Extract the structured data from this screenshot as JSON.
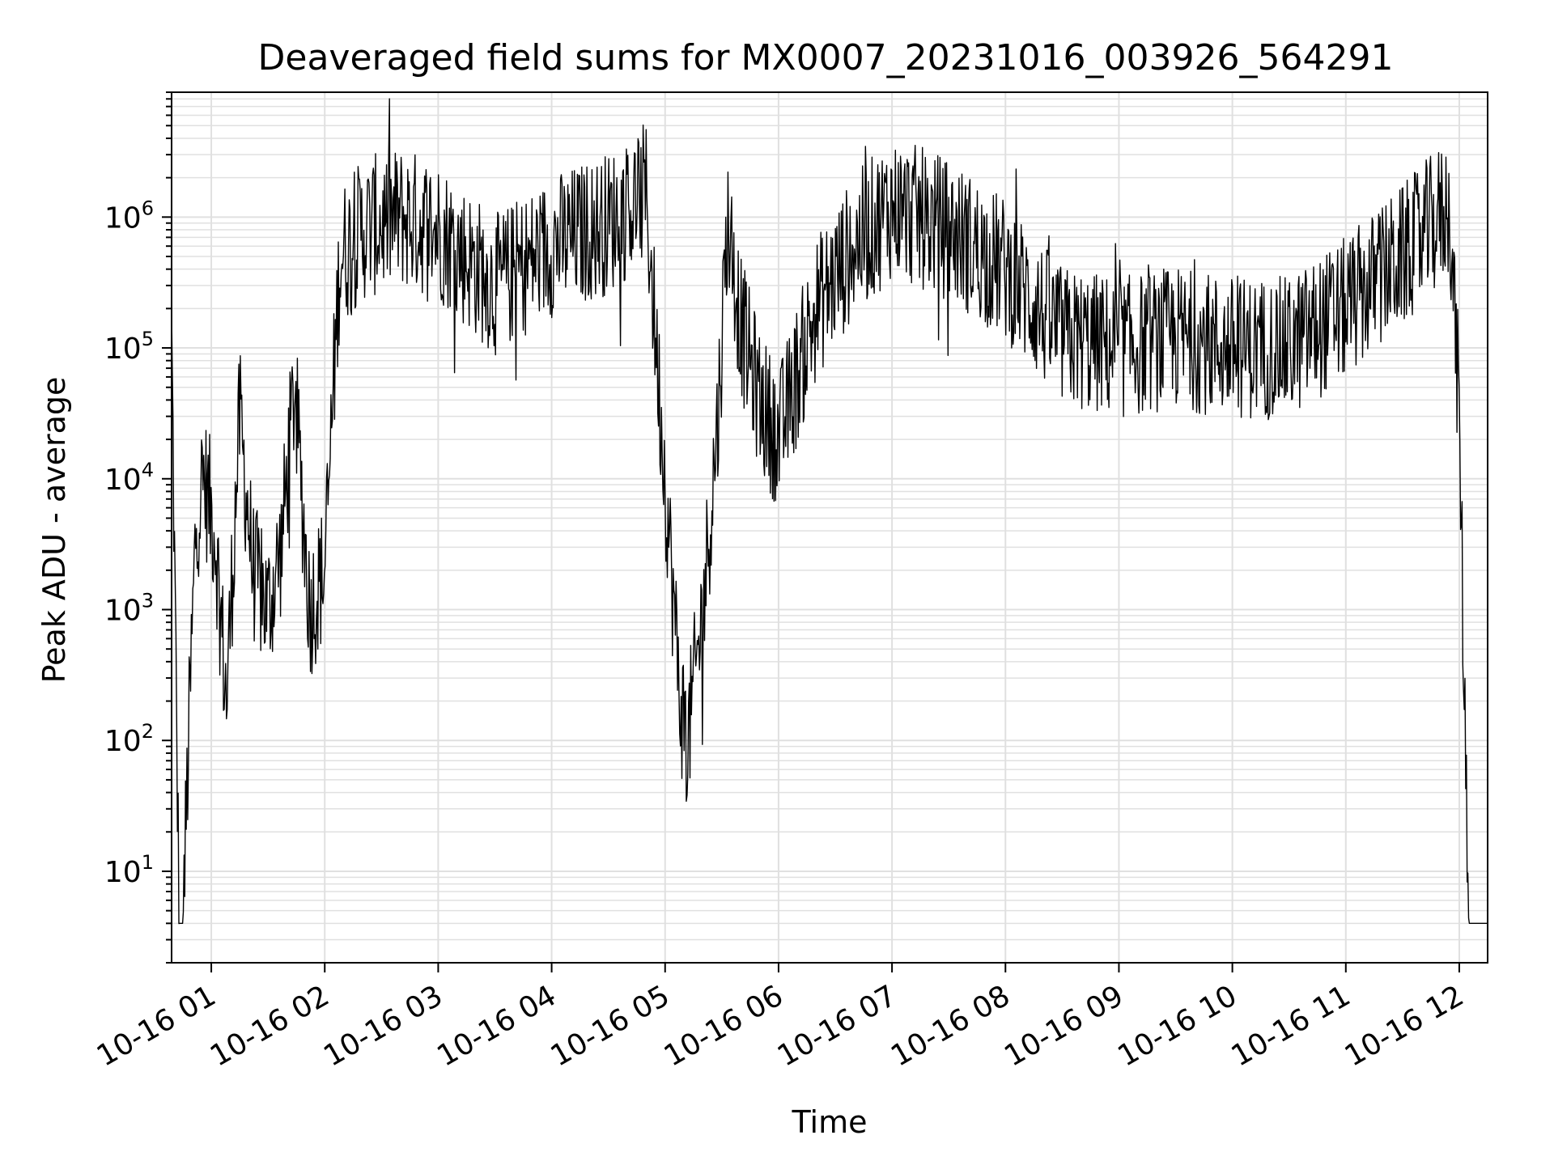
{
  "chart_data": {
    "type": "line",
    "title": "Deaveraged field sums for MX0007_20231016_003926_564291",
    "xlabel": "Time",
    "ylabel": "Peak ADU - average",
    "yscale": "log",
    "ylim": [
      2,
      9000000
    ],
    "xlim": [
      "2023-10-16 00:39",
      "2023-10-16 12:15"
    ],
    "grid": true,
    "line_color": "#000000",
    "grid_color": "#e0e0e0",
    "x_ticks": [
      "10-16 01",
      "10-16 02",
      "10-16 03",
      "10-16 04",
      "10-16 05",
      "10-16 06",
      "10-16 07",
      "10-16 08",
      "10-16 09",
      "10-16 10",
      "10-16 11",
      "10-16 12"
    ],
    "y_ticks": [
      {
        "base": "10",
        "exp": "1",
        "value": 10
      },
      {
        "base": "10",
        "exp": "2",
        "value": 100
      },
      {
        "base": "10",
        "exp": "3",
        "value": 1000
      },
      {
        "base": "10",
        "exp": "4",
        "value": 10000
      },
      {
        "base": "10",
        "exp": "5",
        "value": 100000
      },
      {
        "base": "10",
        "exp": "6",
        "value": 1000000
      }
    ],
    "series": [
      {
        "x": [
          "2023-10-16 00:39",
          "2023-10-16 00:43",
          "2023-10-16 00:45",
          "2023-10-16 00:48",
          "2023-10-16 00:52",
          "2023-10-16 00:56",
          "2023-10-16 01:02",
          "2023-10-16 01:08",
          "2023-10-16 01:15",
          "2023-10-16 01:22",
          "2023-10-16 01:30",
          "2023-10-16 01:37",
          "2023-10-16 01:44",
          "2023-10-16 01:52",
          "2023-10-16 02:00",
          "2023-10-16 02:08",
          "2023-10-16 02:20",
          "2023-10-16 02:40",
          "2023-10-16 03:00",
          "2023-10-16 03:30",
          "2023-10-16 04:00",
          "2023-10-16 04:30",
          "2023-10-16 04:50",
          "2023-10-16 05:00",
          "2023-10-16 05:08",
          "2023-10-16 05:12",
          "2023-10-16 05:20",
          "2023-10-16 05:28",
          "2023-10-16 05:33",
          "2023-10-16 05:40",
          "2023-10-16 05:50",
          "2023-10-16 06:00",
          "2023-10-16 06:20",
          "2023-10-16 06:40",
          "2023-10-16 07:00",
          "2023-10-16 07:30",
          "2023-10-16 08:00",
          "2023-10-16 08:30",
          "2023-10-16 09:00",
          "2023-10-16 09:30",
          "2023-10-16 10:00",
          "2023-10-16 10:30",
          "2023-10-16 11:00",
          "2023-10-16 11:30",
          "2023-10-16 11:55",
          "2023-10-16 12:00",
          "2023-10-16 12:05",
          "2023-10-16 12:10",
          "2023-10-16 12:15"
        ],
        "y": [
          130000,
          4,
          4,
          100,
          5000,
          10000,
          4000,
          200,
          30000,
          2000,
          1000,
          3000,
          50000,
          1000,
          2000,
          500000,
          800000,
          1000000,
          800000,
          300000,
          600000,
          900000,
          1500000,
          10000,
          200,
          100,
          1000,
          30000,
          1000000,
          150000,
          40000,
          20000,
          200000,
          600000,
          1200000,
          800000,
          400000,
          120000,
          100000,
          120000,
          100000,
          100000,
          200000,
          500000,
          1200000,
          30000,
          4,
          4,
          4
        ]
      }
    ]
  }
}
